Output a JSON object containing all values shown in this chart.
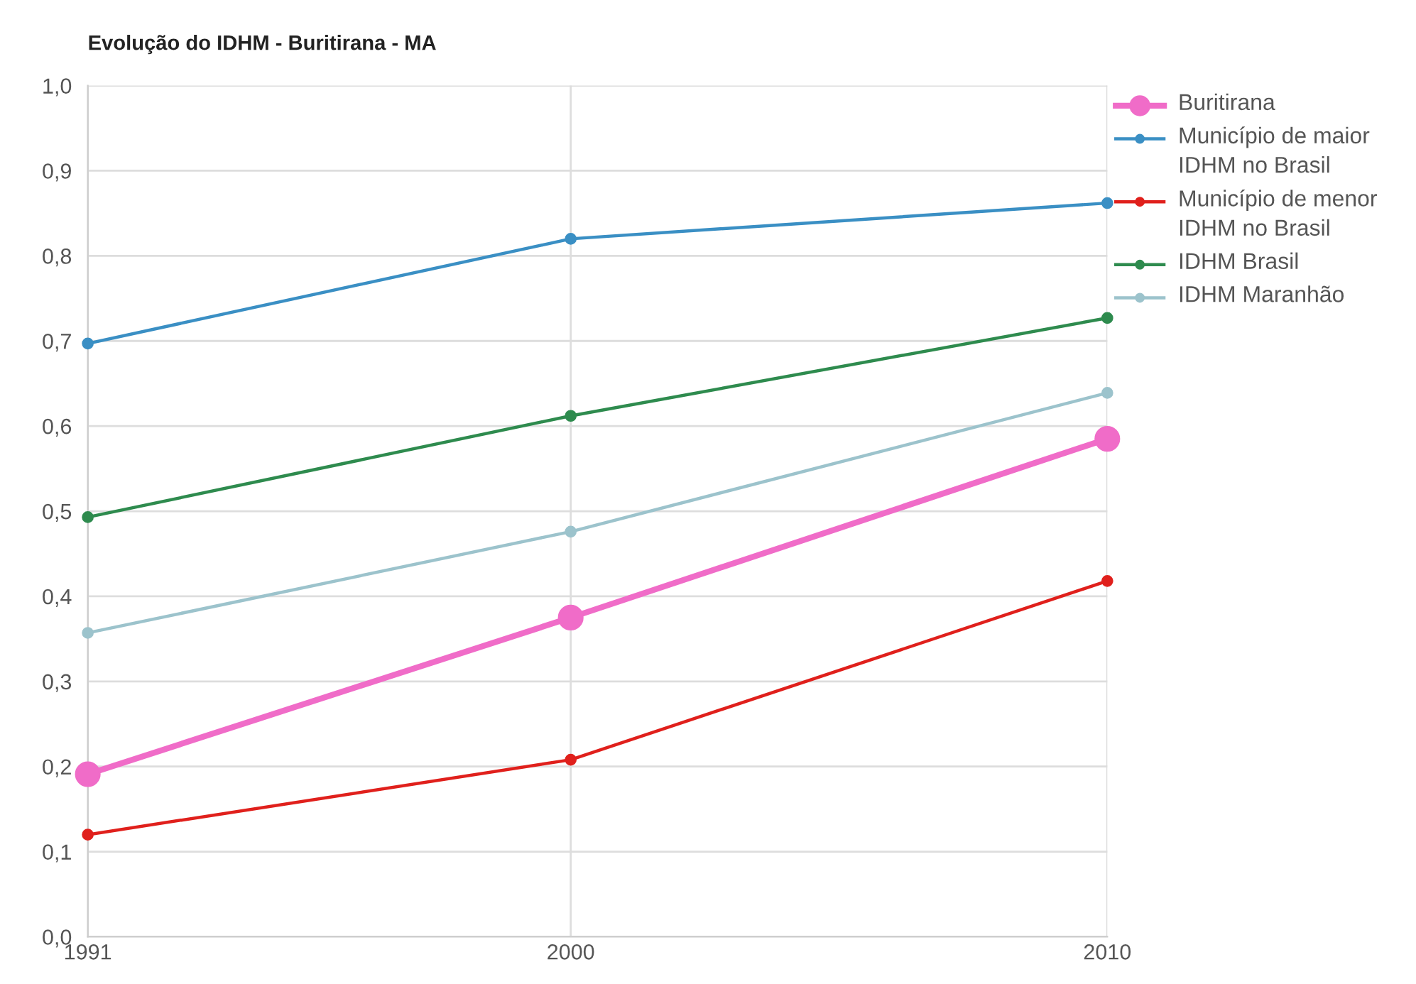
{
  "chart_data": {
    "type": "line",
    "title": "Evolução do IDHM - Buritirana - MA",
    "x": [
      1991,
      2000,
      2010
    ],
    "series": [
      {
        "name": "Buritirana",
        "color": "#f06cc8",
        "values": [
          0.191,
          0.375,
          0.585
        ]
      },
      {
        "name": "Município de maior IDHM no Brasil",
        "color": "#3a8fc4",
        "values": [
          0.697,
          0.82,
          0.862
        ]
      },
      {
        "name": "Município de menor IDHM no Brasil",
        "color": "#e0201c",
        "values": [
          0.12,
          0.208,
          0.418
        ]
      },
      {
        "name": "IDHM Brasil",
        "color": "#2e8b4e",
        "values": [
          0.493,
          0.612,
          0.727
        ]
      },
      {
        "name": "IDHM Maranhão",
        "color": "#9cc3cc",
        "values": [
          0.357,
          0.476,
          0.639
        ]
      }
    ],
    "xlim": [
      1991,
      2010
    ],
    "xticks": [
      1991,
      2000,
      2010
    ],
    "ylim": [
      0,
      1
    ],
    "yticks": [
      {
        "value": 0,
        "label": "0,0"
      },
      {
        "value": 0.1,
        "label": "0,1"
      },
      {
        "value": 0.2,
        "label": "0,2"
      },
      {
        "value": 0.3,
        "label": "0,3"
      },
      {
        "value": 0.4,
        "label": "0,4"
      },
      {
        "value": 0.5,
        "label": "0,5"
      },
      {
        "value": 0.6,
        "label": "0,6"
      },
      {
        "value": 0.7,
        "label": "0,7"
      },
      {
        "value": 0.8,
        "label": "0,8"
      },
      {
        "value": 0.9,
        "label": "0,9"
      },
      {
        "value": 1,
        "label": "1,0"
      }
    ],
    "grid": true,
    "legend": "right",
    "marker": "circle",
    "line_style": "solid"
  }
}
